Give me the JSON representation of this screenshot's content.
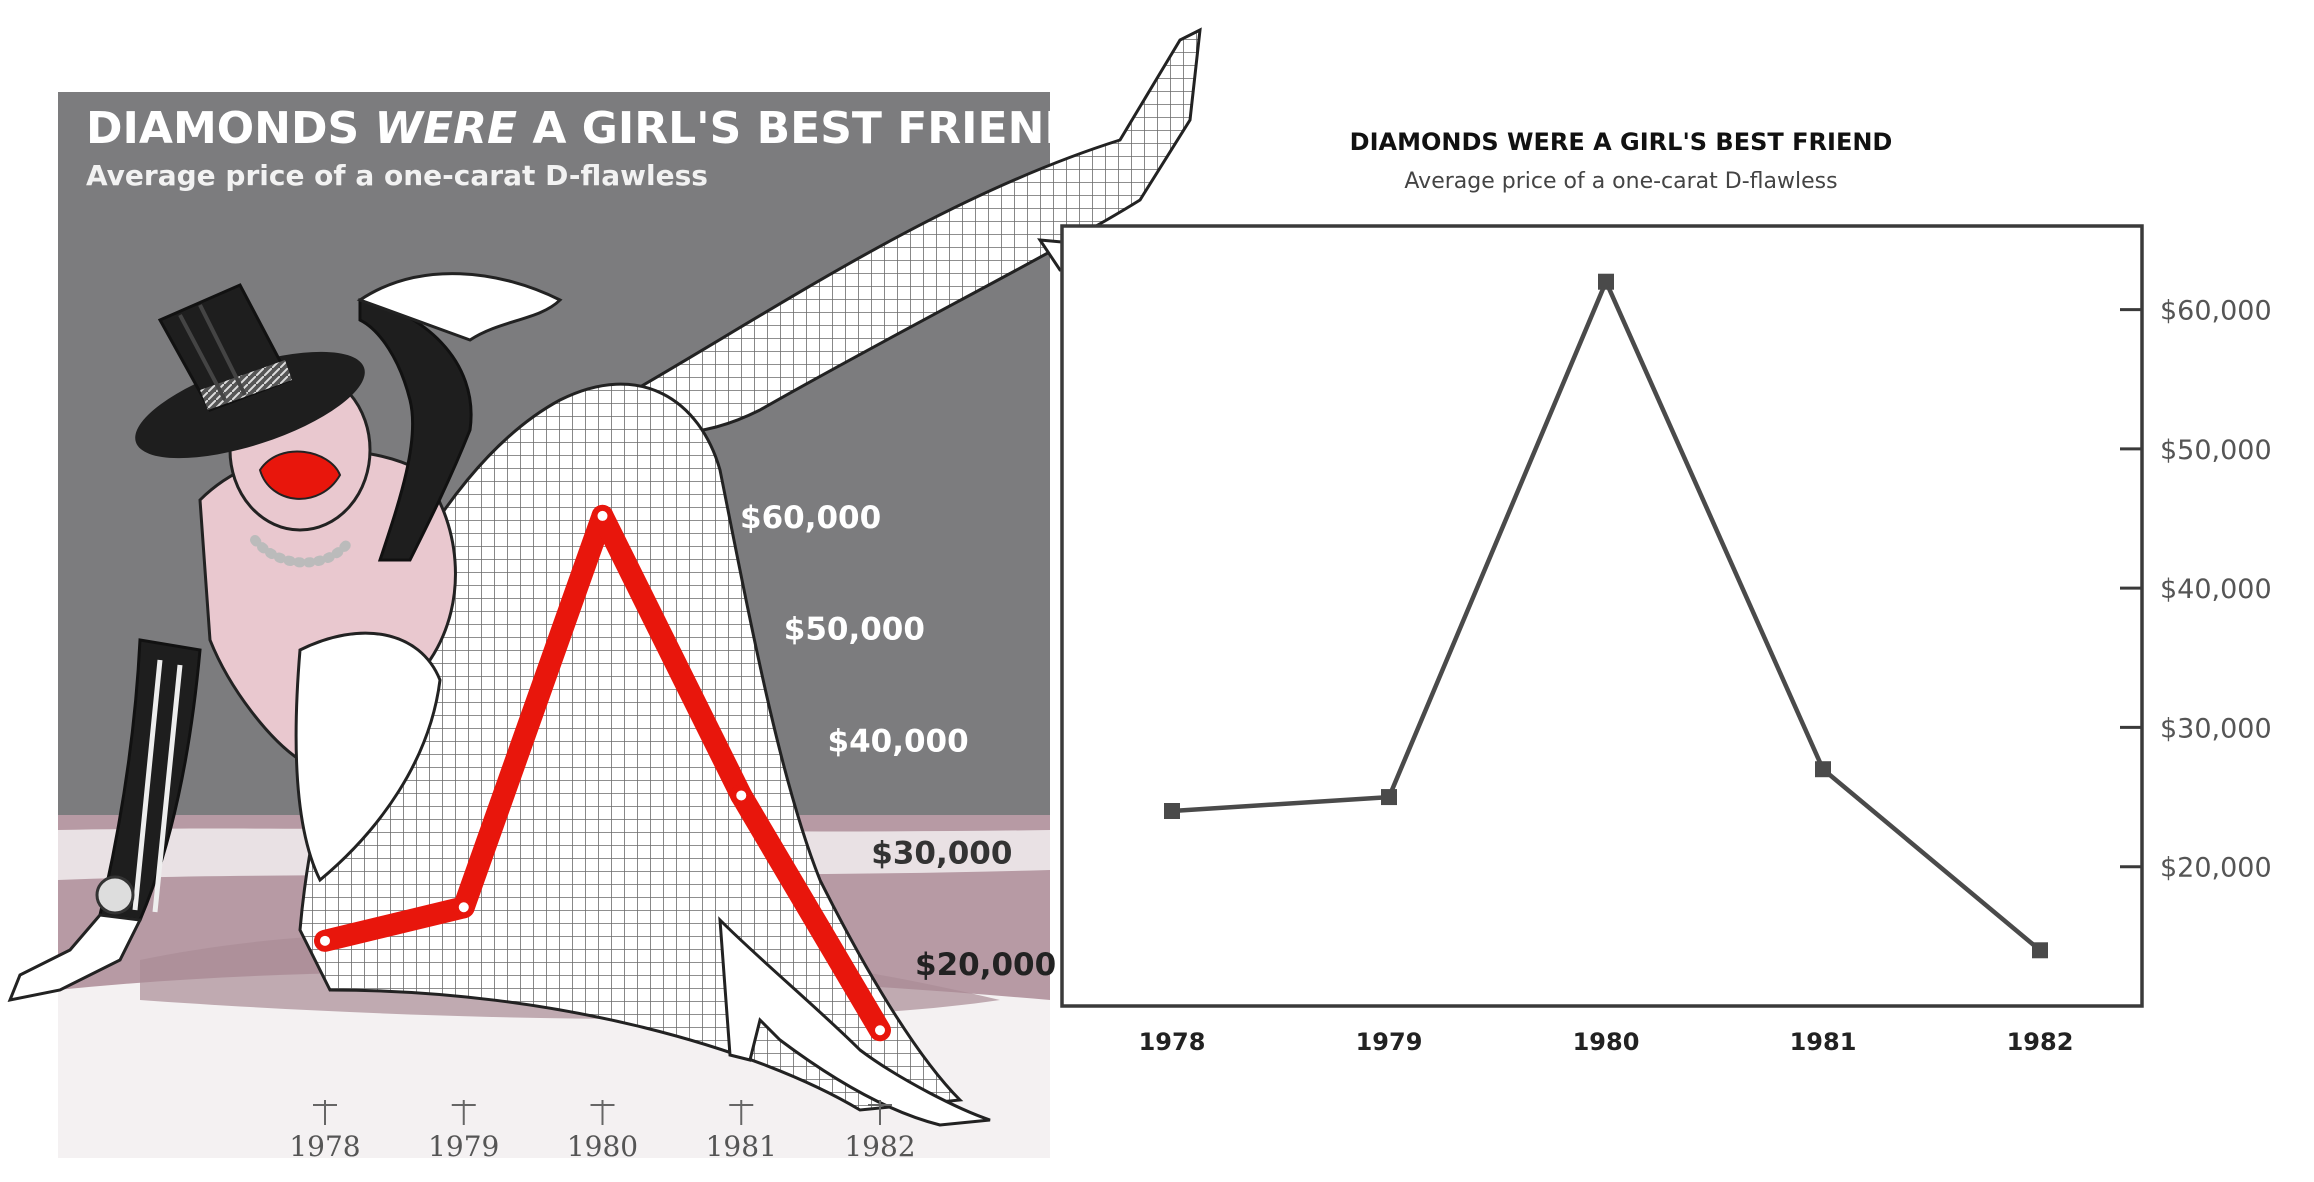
{
  "chart_data": [
    {
      "type": "line",
      "style": "illustrated",
      "title_parts": [
        "DIAMONDS ",
        "WERE",
        " A GIRL'S BEST FRIEND"
      ],
      "subtitle": "Average price of a one-carat D-flawless",
      "categories": [
        "1978",
        "1979",
        "1980",
        "1981",
        "1982"
      ],
      "values": [
        22000,
        25000,
        60000,
        35000,
        14000
      ],
      "y_tick_labels": [
        "$20,000",
        "$30,000",
        "$40,000",
        "$50,000",
        "$60,000"
      ],
      "ylim": [
        10000,
        65000
      ],
      "colors": {
        "line": "#e8160c",
        "background": "#7c7c7e",
        "floor": "#b79aa4"
      }
    },
    {
      "type": "line",
      "title": "DIAMONDS WERE A GIRL'S BEST FRIEND",
      "subtitle": "Average price of a one-carat D-flawless",
      "categories": [
        "1978",
        "1979",
        "1980",
        "1981",
        "1982"
      ],
      "values": [
        24000,
        25000,
        62000,
        27000,
        14000
      ],
      "y_tick_labels": [
        "$20,000",
        "$30,000",
        "$40,000",
        "$50,000",
        "$60,000"
      ],
      "y_ticks": [
        20000,
        30000,
        40000,
        50000,
        60000
      ],
      "ylim": [
        10000,
        66000
      ],
      "y_axis_position": "right",
      "grid": false,
      "colors": {
        "line": "#4a4a4a",
        "frame": "#3a3a3a"
      }
    }
  ]
}
